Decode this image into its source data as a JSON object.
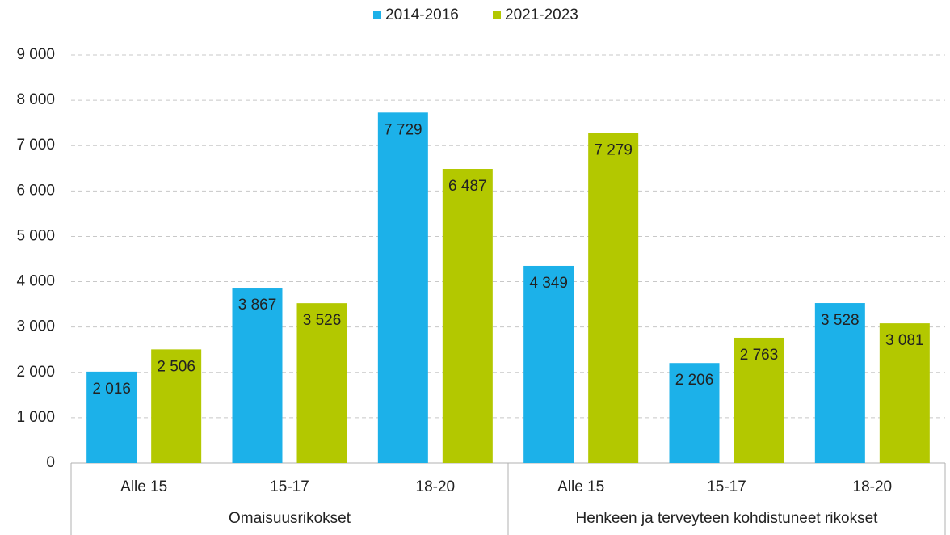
{
  "chart_data": {
    "type": "bar",
    "categories": [
      "Alle 15",
      "15-17",
      "18-20",
      "Alle 15",
      "15-17",
      "18-20"
    ],
    "groups": [
      "Omaisuusrikokset",
      "Henkeen ja terveyteen kohdistuneet rikokset"
    ],
    "series": [
      {
        "name": "2014-2016",
        "color": "#1cb1e9",
        "values": [
          2016,
          3867,
          7729,
          4349,
          2206,
          3528
        ],
        "value_labels": [
          "2 016",
          "3 867",
          "7 729",
          "4 349",
          "2 206",
          "3 528"
        ]
      },
      {
        "name": "2021-2023",
        "color": "#b3c800",
        "values": [
          2506,
          3526,
          6487,
          7279,
          2763,
          3081
        ],
        "value_labels": [
          "2 506",
          "3 526",
          "6 487",
          "7 279",
          "2 763",
          "3 081"
        ]
      }
    ],
    "ylim": [
      0,
      9000
    ],
    "yticks": [
      0,
      {
        "value": 1000,
        "label": "1 000"
      },
      {
        "value": 2000,
        "label": "2 000"
      },
      {
        "value": 3000,
        "label": "3 000"
      },
      {
        "value": 4000,
        "label": "4 000"
      },
      {
        "value": 5000,
        "label": "5 000"
      },
      {
        "value": 6000,
        "label": "6 000"
      },
      {
        "value": 7000,
        "label": "7 000"
      },
      {
        "value": 8000,
        "label": "8 000"
      },
      {
        "value": 9000,
        "label": "9 000"
      }
    ],
    "grid": true,
    "legend": "top"
  }
}
